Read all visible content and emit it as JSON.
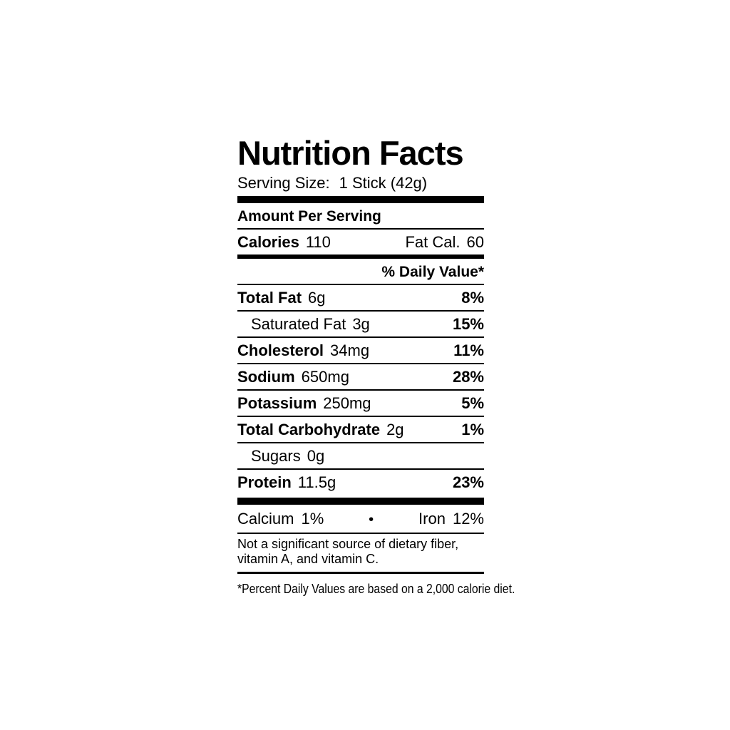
{
  "accent_colors": {
    "text": "#000000",
    "background": "#ffffff"
  },
  "label": {
    "title": "Nutrition Facts",
    "serving": {
      "label": "Serving Size:",
      "value": "1 Stick (42g)"
    },
    "amount_per_serving": "Amount Per Serving",
    "calories": {
      "label": "Calories",
      "value": "110",
      "fat_cal_label": "Fat Cal.",
      "fat_cal_value": "60"
    },
    "daily_value_header": "% Daily Value*",
    "rows": [
      {
        "name": "Total Fat",
        "amount": "6g",
        "dv": "8%"
      },
      {
        "name": "Saturated Fat",
        "amount": "3g",
        "dv": "15%"
      },
      {
        "name": "Cholesterol",
        "amount": "34mg",
        "dv": "11%"
      },
      {
        "name": "Sodium",
        "amount": "650mg",
        "dv": "28%"
      },
      {
        "name": "Potassium",
        "amount": "250mg",
        "dv": "5%"
      },
      {
        "name": "Total Carbohydrate",
        "amount": "2g",
        "dv": "1%"
      },
      {
        "name": "Sugars",
        "amount": "0g",
        "dv": ""
      },
      {
        "name": "Protein",
        "amount": "11.5g",
        "dv": "23%"
      }
    ],
    "minerals": {
      "calcium_label": "Calcium",
      "calcium_value": "1%",
      "separator": "•",
      "iron_label": "Iron",
      "iron_value": "12%"
    },
    "not_significant_line1": "Not a significant source of dietary fiber,",
    "not_significant_line2": "vitamin A, and vitamin C.",
    "footnote": "*Percent Daily Values are based on a 2,000 calorie diet."
  }
}
